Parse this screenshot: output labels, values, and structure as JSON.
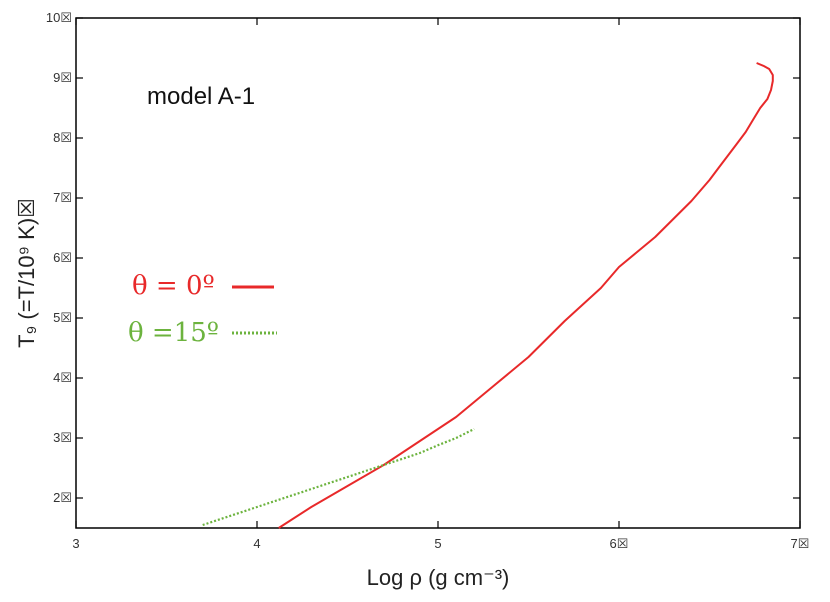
{
  "chart_data": {
    "type": "line",
    "title": "",
    "annotation": "model A-1",
    "xlabel": "Log ρ (g cm⁻³)",
    "ylabel": "T₉ (=T/10⁹ K)☒",
    "xlim": [
      3,
      7
    ],
    "ylim": [
      1.5,
      10
    ],
    "x_ticks": [
      3,
      4,
      5,
      6,
      7
    ],
    "x_tick_labels": [
      "3",
      "4",
      "5",
      "6☒",
      "7☒"
    ],
    "y_ticks": [
      2,
      3,
      4,
      5,
      6,
      7,
      8,
      9,
      10
    ],
    "y_tick_labels": [
      "2☒",
      "3☒",
      "4☒",
      "5☒",
      "6☒",
      "7☒",
      "8☒",
      "9☒",
      "10☒"
    ],
    "grid": false,
    "legend_position": "left-middle",
    "series": [
      {
        "name": "θ = 0º",
        "color": "#e8292a",
        "style": "solid",
        "x": [
          4.12,
          4.3,
          4.5,
          4.7,
          4.9,
          5.1,
          5.3,
          5.5,
          5.7,
          5.9,
          6.0,
          6.1,
          6.2,
          6.3,
          6.4,
          6.5,
          6.55,
          6.6,
          6.65,
          6.7,
          6.74,
          6.78,
          6.82,
          6.84,
          6.85,
          6.85,
          6.83,
          6.8,
          6.76
        ],
        "y": [
          1.5,
          1.85,
          2.2,
          2.55,
          2.95,
          3.35,
          3.85,
          4.35,
          4.95,
          5.5,
          5.85,
          6.1,
          6.35,
          6.65,
          6.95,
          7.3,
          7.5,
          7.7,
          7.9,
          8.1,
          8.3,
          8.5,
          8.65,
          8.8,
          8.95,
          9.05,
          9.15,
          9.2,
          9.25
        ]
      },
      {
        "name": "θ =15º",
        "color": "#6cb33e",
        "style": "dotted",
        "x": [
          3.7,
          3.9,
          4.1,
          4.3,
          4.5,
          4.7,
          4.9,
          5.0,
          5.1,
          5.2
        ],
        "y": [
          1.55,
          1.75,
          1.95,
          2.15,
          2.35,
          2.55,
          2.75,
          2.88,
          3.0,
          3.15
        ]
      }
    ]
  }
}
